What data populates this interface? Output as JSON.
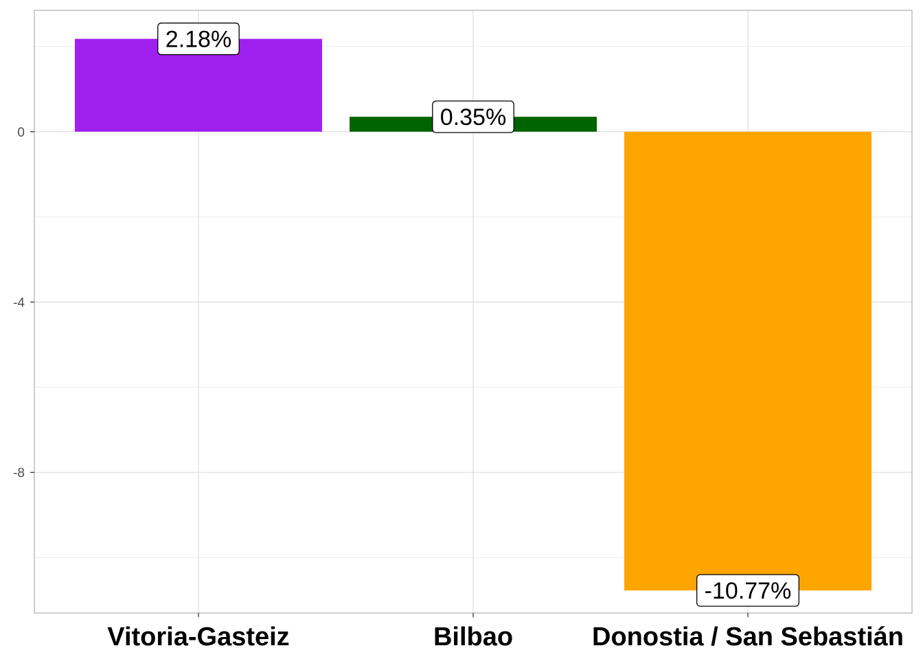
{
  "chart_data": {
    "type": "bar",
    "categories": [
      "Vitoria-Gasteiz",
      "Bilbao",
      "Donostia / San Sebastián"
    ],
    "values": [
      2.18,
      0.35,
      -10.77
    ],
    "data_labels": [
      "2.18%",
      "0.35%",
      "-10.77%"
    ],
    "colors": [
      "#a020f0",
      "#006400",
      "#ffa500"
    ],
    "title": "",
    "xlabel": "",
    "ylabel": "",
    "ylim": [
      -11.3,
      2.85
    ],
    "y_ticks": [
      0,
      -4,
      -8
    ],
    "y_tick_labels": [
      "0",
      "-4",
      "-8"
    ],
    "grid": true,
    "legend": "none"
  }
}
